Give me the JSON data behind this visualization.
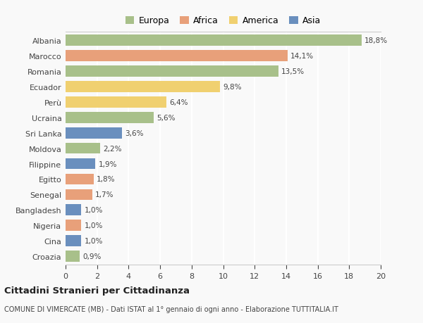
{
  "countries": [
    "Albania",
    "Marocco",
    "Romania",
    "Ecuador",
    "Perù",
    "Ucraina",
    "Sri Lanka",
    "Moldova",
    "Filippine",
    "Egitto",
    "Senegal",
    "Bangladesh",
    "Nigeria",
    "Cina",
    "Croazia"
  ],
  "values": [
    18.8,
    14.1,
    13.5,
    9.8,
    6.4,
    5.6,
    3.6,
    2.2,
    1.9,
    1.8,
    1.7,
    1.0,
    1.0,
    1.0,
    0.9
  ],
  "labels": [
    "18,8%",
    "14,1%",
    "13,5%",
    "9,8%",
    "6,4%",
    "5,6%",
    "3,6%",
    "2,2%",
    "1,9%",
    "1,8%",
    "1,7%",
    "1,0%",
    "1,0%",
    "1,0%",
    "0,9%"
  ],
  "continents": [
    "Europa",
    "Africa",
    "Europa",
    "America",
    "America",
    "Europa",
    "Asia",
    "Europa",
    "Asia",
    "Africa",
    "Africa",
    "Asia",
    "Africa",
    "Asia",
    "Europa"
  ],
  "colors": {
    "Europa": "#a8c08a",
    "Africa": "#e8a07a",
    "America": "#f0d070",
    "Asia": "#6a8fbe"
  },
  "xlim": [
    0,
    20
  ],
  "xticks": [
    0,
    2,
    4,
    6,
    8,
    10,
    12,
    14,
    16,
    18,
    20
  ],
  "title": "Cittadini Stranieri per Cittadinanza",
  "subtitle": "COMUNE DI VIMERCATE (MB) - Dati ISTAT al 1° gennaio di ogni anno - Elaborazione TUTTITALIA.IT",
  "background_color": "#f9f9f9",
  "grid_color": "#ffffff",
  "bar_height": 0.72,
  "text_color": "#444444",
  "label_fontsize": 7.5,
  "ytick_fontsize": 8.0,
  "xtick_fontsize": 8.0
}
